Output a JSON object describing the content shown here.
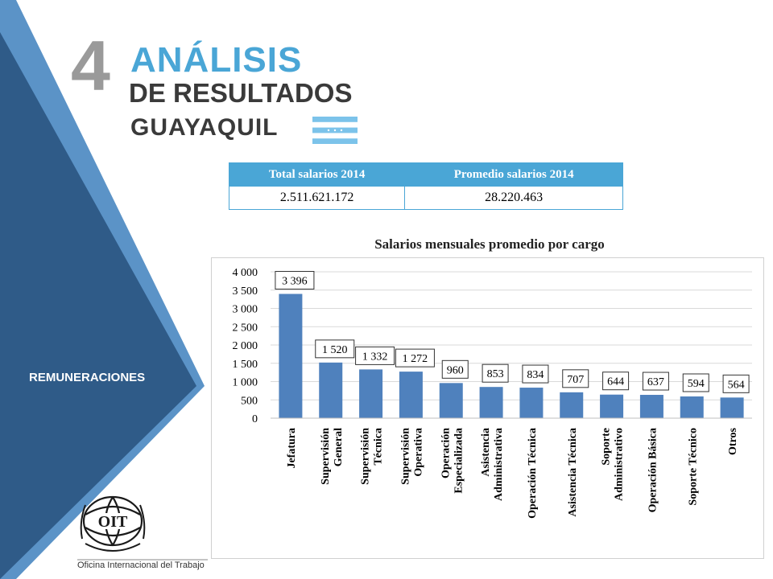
{
  "header": {
    "number": "4",
    "title_line1": "ANÁLISIS",
    "title_line2": "DE RESULTADOS",
    "title_line3": "GUAYAQUIL"
  },
  "sidebar": {
    "label": "REMUNERACIONES",
    "logo_text": "OIT",
    "logo_caption": "Oficina Internacional del Trabajo"
  },
  "summary_table": {
    "headers": [
      "Total salarios 2014",
      "Promedio salarios 2014"
    ],
    "values": [
      "2.511.621.172",
      "28.220.463"
    ]
  },
  "colors": {
    "sidebar_dark": "#2f5b88",
    "sidebar_light": "#5b93c7",
    "accent": "#4aa6d6",
    "bar": "#4f81bd"
  },
  "chart_data": {
    "type": "bar",
    "title": "Salarios mensuales promedio por cargo",
    "categories": [
      [
        "Jefatura"
      ],
      [
        "Supervisión",
        "General"
      ],
      [
        "Supervisión",
        "Técnica"
      ],
      [
        "Supervisión",
        "Operativa"
      ],
      [
        "Operación",
        "Especializada"
      ],
      [
        "Asistencia",
        "Administrativa"
      ],
      [
        "Operación Técnica"
      ],
      [
        "Asistencia Técnica"
      ],
      [
        "Soporte",
        "Administrativo"
      ],
      [
        "Operación Básica"
      ],
      [
        "Soporte Técnico"
      ],
      [
        "Otros"
      ]
    ],
    "values": [
      3396,
      1520,
      1332,
      1272,
      960,
      853,
      834,
      707,
      644,
      637,
      594,
      564
    ],
    "data_labels": [
      "3 396",
      "1 520",
      "1 332",
      "1 272",
      "960",
      "853",
      "834",
      "707",
      "644",
      "637",
      "594",
      "564"
    ],
    "y_ticks": [
      "0",
      "500",
      "1 000",
      "1 500",
      "2 000",
      "2 500",
      "3 000",
      "3 500",
      "4 000"
    ],
    "ylim": [
      0,
      4000
    ],
    "grid": true,
    "legend": "none"
  }
}
